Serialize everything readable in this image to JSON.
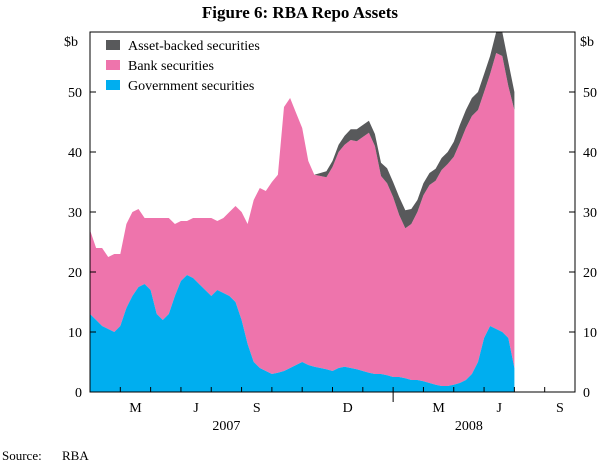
{
  "chart_data": {
    "type": "area",
    "stacked": true,
    "title": "Figure 6: RBA Repo Assets",
    "units_left": "$b",
    "units_right": "$b",
    "ylim": [
      0,
      60
    ],
    "yticks": [
      0,
      10,
      20,
      30,
      40,
      50
    ],
    "x_range_months": [
      0,
      16
    ],
    "x_tick_labels": [
      {
        "label": "M",
        "month": 1.5
      },
      {
        "label": "J",
        "month": 3.5
      },
      {
        "label": "S",
        "month": 5.5
      },
      {
        "label": "D",
        "month": 8.5
      },
      {
        "label": "M",
        "month": 11.5
      },
      {
        "label": "J",
        "month": 13.5
      },
      {
        "label": "S",
        "month": 15.5
      }
    ],
    "year_labels": [
      {
        "label": "2007",
        "month": 4.5
      },
      {
        "label": "2008",
        "month": 12.5
      }
    ],
    "legend": [
      "Asset-backed securities",
      "Bank securities",
      "Government securities"
    ],
    "colors": {
      "asset_backed": "#58595b",
      "bank": "#ee74ac",
      "government": "#00aeef",
      "axis": "#000000"
    },
    "x": [
      0.0,
      0.2,
      0.4,
      0.6,
      0.8,
      1.0,
      1.2,
      1.4,
      1.6,
      1.8,
      2.0,
      2.2,
      2.4,
      2.6,
      2.8,
      3.0,
      3.2,
      3.4,
      3.6,
      3.8,
      4.0,
      4.2,
      4.4,
      4.6,
      4.8,
      5.0,
      5.2,
      5.4,
      5.6,
      5.8,
      6.0,
      6.2,
      6.4,
      6.6,
      6.8,
      7.0,
      7.2,
      7.4,
      7.6,
      7.8,
      8.0,
      8.2,
      8.4,
      8.6,
      8.8,
      9.0,
      9.2,
      9.4,
      9.6,
      9.8,
      10.0,
      10.2,
      10.4,
      10.6,
      10.8,
      11.0,
      11.2,
      11.4,
      11.6,
      11.8,
      12.0,
      12.2,
      12.4,
      12.6,
      12.8,
      13.0,
      13.2,
      13.4,
      13.6,
      13.8,
      14.0
    ],
    "series": [
      {
        "name": "Government securities",
        "values": [
          13,
          12,
          11,
          10.5,
          10,
          11,
          14,
          16,
          17.5,
          18,
          17,
          13,
          12,
          13,
          16,
          18.5,
          19.5,
          19,
          18,
          17,
          16,
          17,
          16.5,
          16,
          15,
          12,
          8,
          5,
          4,
          3.5,
          3,
          3.2,
          3.5,
          4,
          4.5,
          5,
          4.5,
          4.2,
          4,
          3.8,
          3.5,
          4,
          4.2,
          4,
          3.8,
          3.5,
          3.2,
          3,
          3,
          2.8,
          2.5,
          2.5,
          2.3,
          2,
          2,
          1.8,
          1.5,
          1.2,
          1,
          1,
          1.2,
          1.5,
          2,
          3,
          5,
          9,
          11,
          10.5,
          10,
          9,
          4
        ]
      },
      {
        "name": "Bank securities",
        "values": [
          14,
          12,
          13,
          12,
          13,
          12,
          14,
          14,
          13,
          11,
          12,
          16,
          17,
          16,
          12,
          10,
          9,
          10,
          11,
          12,
          13,
          11.5,
          12.5,
          14,
          16,
          18,
          20,
          27,
          30,
          30,
          32,
          33,
          44,
          45,
          42,
          39,
          34,
          32,
          32,
          32,
          34,
          36,
          37,
          38,
          38,
          39,
          40,
          38,
          33,
          32,
          30,
          27,
          25,
          26,
          28,
          31,
          33,
          34,
          36,
          37,
          38,
          40,
          42,
          43,
          42,
          41,
          42,
          46,
          46,
          42,
          43
        ]
      },
      {
        "name": "Asset-backed securities",
        "values": [
          0,
          0,
          0,
          0,
          0,
          0,
          0,
          0,
          0,
          0,
          0,
          0,
          0,
          0,
          0,
          0,
          0,
          0,
          0,
          0,
          0,
          0,
          0,
          0,
          0,
          0,
          0,
          0,
          0,
          0,
          0,
          0,
          0,
          0,
          0,
          0,
          0,
          0,
          0.5,
          1,
          1,
          1.2,
          1.5,
          1.8,
          2,
          2,
          2,
          2,
          2.2,
          2.5,
          2.5,
          3,
          3,
          2.5,
          2,
          2,
          2,
          2,
          2,
          2,
          2.5,
          3,
          3,
          3,
          3,
          3,
          3,
          3.5,
          4,
          4,
          3
        ]
      }
    ]
  },
  "footer": {
    "source_label": "Source:",
    "source_value": "RBA"
  }
}
